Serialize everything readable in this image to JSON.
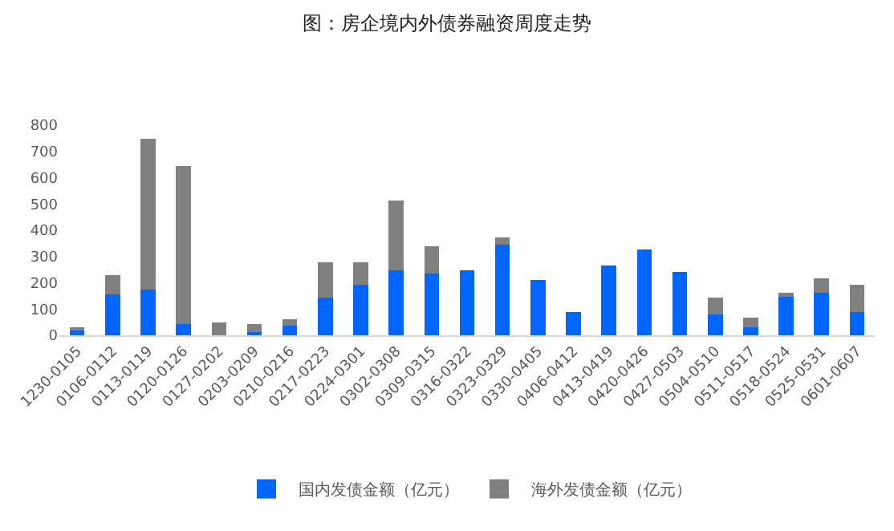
{
  "chart_data": {
    "type": "bar",
    "title": "图：房企境内外债券融资周度走势",
    "stacked": true,
    "legend": "bottom",
    "grid": false,
    "categories": [
      "1230-0105",
      "0106-0112",
      "0113-0119",
      "0120-0126",
      "0127-0202",
      "0203-0209",
      "0210-0216",
      "0217-0223",
      "0224-0301",
      "0302-0308",
      "0309-0315",
      "0316-0322",
      "0323-0329",
      "0330-0405",
      "0406-0412",
      "0413-0419",
      "0420-0426",
      "0427-0503",
      "0504-0510",
      "0511-0517",
      "0518-0524",
      "0525-0531",
      "0601-0607"
    ],
    "series": [
      {
        "name": "国内发债金额（亿元）",
        "color": "#0066ff",
        "values": [
          20,
          157,
          175,
          44,
          0,
          12,
          36,
          145,
          193,
          247,
          235,
          247,
          344,
          211,
          90,
          265,
          326,
          241,
          78,
          30,
          151,
          163,
          90
        ]
      },
      {
        "name": "海外发债金额（亿元）",
        "color": "#808080",
        "values": [
          6,
          72,
          573,
          601,
          50,
          32,
          24,
          132,
          84,
          266,
          103,
          0,
          30,
          0,
          0,
          0,
          0,
          0,
          67,
          36,
          12,
          54,
          103
        ]
      }
    ],
    "ylim": [
      0,
      800
    ],
    "yticks": [
      0,
      100,
      200,
      300,
      400,
      500,
      600,
      700,
      800
    ]
  }
}
